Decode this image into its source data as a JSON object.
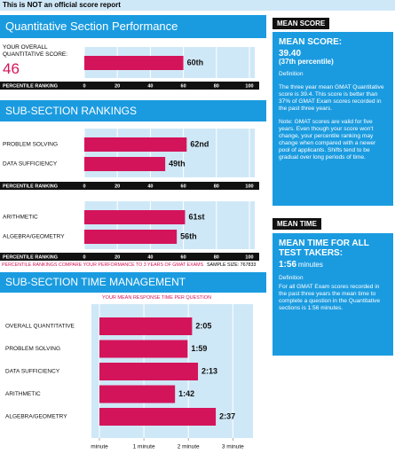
{
  "banner": "This is NOT an official score report",
  "percentile_axis": {
    "label": "PERCENTILE RANKING",
    "xlim": [
      0,
      100
    ],
    "xticks": [
      0,
      20,
      40,
      60,
      80,
      100
    ]
  },
  "performance": {
    "title": "Quantitative Section Performance",
    "score_label": "YOUR OVERALL QUANTITATIVE SCORE:",
    "score": 46,
    "values": [
      60
    ],
    "value_labels": [
      "60th"
    ]
  },
  "rankings": {
    "title": "SUB-SECTION RANKINGS",
    "groups": [
      {
        "categories": [
          "PROBLEM SOLVING",
          "DATA SUFFICIENCY"
        ],
        "values": [
          62,
          49
        ],
        "value_labels": [
          "62nd",
          "49th"
        ]
      },
      {
        "categories": [
          "ARITHMETIC",
          "ALGEBRA/GEOMETRY"
        ],
        "values": [
          61,
          56
        ],
        "value_labels": [
          "61st",
          "56th"
        ]
      }
    ],
    "note": "PERCENTILE RANKINGS COMPARE YOUR PERFORMANCE TO 3 YEARS OF GMAT EXAMS",
    "sample_size": "SAMPLE SIZE: 767833"
  },
  "time": {
    "title": "SUB-SECTION TIME MANAGEMENT",
    "subtitle": "YOUR MEAN RESPONSE TIME PER QUESTION",
    "categories": [
      "OVERALL QUANTITATIVE",
      "PROBLEM SOLVING",
      "DATA SUFFICIENCY",
      "ARITHMETIC",
      "ALGEBRA/GEOMETRY"
    ],
    "values": [
      125,
      119,
      133,
      102,
      157
    ],
    "value_labels": [
      "2:05",
      "1:59",
      "2:13",
      "1:42",
      "2:37"
    ],
    "xlim": [
      0,
      200
    ],
    "xticks": [
      {
        "value": 0,
        "label": "minute"
      },
      {
        "value": 60,
        "label": "1 minute"
      },
      {
        "value": 120,
        "label": "2 minute"
      },
      {
        "value": 180,
        "label": "3 minute"
      }
    ]
  },
  "mean_score": {
    "tag": "MEAN SCORE",
    "heading": "MEAN SCORE:",
    "value": "39.40",
    "percentile": "(37th percentile)",
    "definition_label": "Definition",
    "definition": "The three year mean GMAT Quantitative score is 39.4. This score is better than 37% of GMAT Exam scores recorded in the past three years.",
    "note": "Note:  GMAT scores are valid for five years. Even though your score won't change, your percentile ranking may change when compared with a newer pool of applicants.  Shifts tend to be gradual over long periods of time."
  },
  "mean_time": {
    "tag": "MEAN TIME",
    "heading": "MEAN TIME FOR ALL TEST TAKERS:",
    "value": "1:56",
    "unit": "minutes",
    "definition_label": "Definition",
    "definition": "For all GMAT Exam scores recorded in the past three years the mean time to complete a question in the Quantitative sections is 1:56 minutes."
  }
}
